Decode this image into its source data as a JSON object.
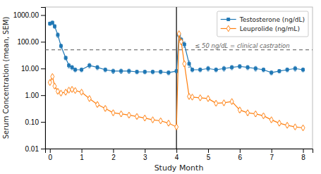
{
  "chart_data": {
    "type": "line",
    "xlabel": "Study Month",
    "ylabel": "Serum Concentration (mean, SEM)",
    "log": "y",
    "xlim": [
      -0.15,
      8.3
    ],
    "xticks": [
      0,
      1,
      2,
      3,
      4,
      5,
      6,
      7,
      8
    ],
    "ylim": [
      0.01,
      2000
    ],
    "yticks": [
      0.01,
      {
        "value": 0.1,
        "label": "0.10"
      },
      {
        "value": 1,
        "label": "1.00"
      },
      {
        "value": 10,
        "label": "10.00"
      },
      {
        "value": 100,
        "label": "100.00"
      },
      {
        "value": 1000,
        "label": "1000.00"
      }
    ],
    "grid": false,
    "legend": "upper right",
    "x": [
      0,
      0.08,
      0.15,
      0.25,
      0.35,
      0.5,
      0.6,
      0.7,
      0.8,
      1.0,
      1.25,
      1.5,
      1.75,
      2.0,
      2.25,
      2.5,
      2.75,
      3.0,
      3.25,
      3.5,
      3.75,
      4.0,
      4.08,
      4.15,
      4.25,
      4.4,
      4.5,
      4.75,
      5.0,
      5.25,
      5.5,
      5.75,
      6.0,
      6.25,
      6.5,
      6.75,
      7.0,
      7.25,
      7.5,
      7.75,
      8.0
    ],
    "series": [
      {
        "name": "Testosterone (ng/dL)",
        "marker": "square",
        "values": [
          480,
          520,
          380,
          180,
          70,
          25,
          13,
          11,
          9,
          9,
          13,
          11,
          9,
          8,
          8,
          8,
          7.5,
          7.5,
          7.5,
          7.5,
          7,
          8,
          180,
          120,
          80,
          15,
          9,
          9,
          10,
          9,
          10,
          11,
          12,
          11,
          10,
          9,
          7,
          8,
          9,
          10,
          9
        ],
        "errors": [
          70,
          80,
          60,
          35,
          12,
          4,
          2.5,
          2,
          1.5,
          1.5,
          2.5,
          2,
          1.5,
          1.5,
          1.5,
          1.5,
          1.2,
          1.2,
          1.2,
          1.2,
          1.2,
          1.2,
          35,
          25,
          18,
          4,
          1.5,
          1.5,
          2,
          1.5,
          2,
          2,
          2,
          2,
          2,
          1.5,
          1.2,
          1.2,
          1.5,
          2,
          1.5
        ]
      },
      {
        "name": "Leuprolide (ng/mL)",
        "marker": "diamond",
        "values": [
          3.0,
          5.0,
          2.2,
          1.4,
          1.2,
          1.3,
          1.55,
          1.65,
          1.5,
          1.3,
          0.75,
          0.45,
          0.32,
          0.22,
          0.2,
          0.18,
          0.16,
          0.14,
          0.12,
          0.11,
          0.09,
          0.065,
          200,
          100,
          15,
          0.9,
          0.85,
          0.8,
          0.75,
          0.5,
          0.52,
          0.58,
          0.28,
          0.22,
          0.2,
          0.17,
          0.12,
          0.09,
          0.075,
          0.065,
          0.06
        ],
        "errors": [
          0.5,
          0.8,
          0.4,
          0.25,
          0.2,
          0.2,
          0.25,
          0.28,
          0.25,
          0.2,
          0.12,
          0.08,
          0.06,
          0.04,
          0.035,
          0.03,
          0.028,
          0.025,
          0.02,
          0.018,
          0.015,
          0.01,
          35,
          20,
          3,
          0.15,
          0.14,
          0.13,
          0.12,
          0.08,
          0.09,
          0.1,
          0.05,
          0.04,
          0.035,
          0.03,
          0.02,
          0.015,
          0.012,
          0.01,
          0.01
        ]
      }
    ],
    "reference_lines": [
      {
        "x": 4.0
      },
      {
        "y": 50,
        "label": "≤ 50 ng/dL = clinical castration",
        "line_style": "dashed"
      }
    ]
  }
}
